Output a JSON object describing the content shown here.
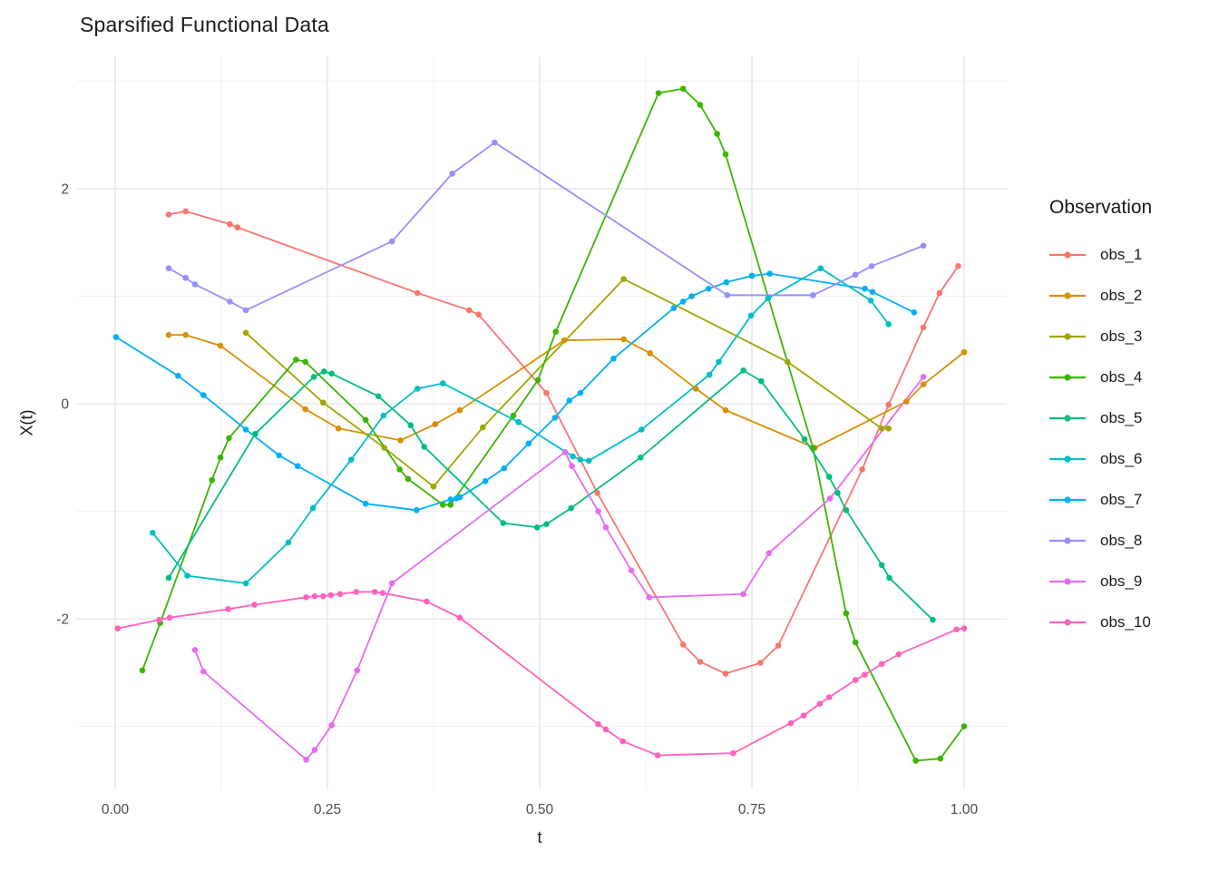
{
  "title": "Sparsified Functional Data",
  "chart_data": {
    "type": "line",
    "title": "Sparsified Functional Data",
    "xlabel": "t",
    "ylabel": "X(t)",
    "legend_title": "Observation",
    "legend_position": "right",
    "grid": true,
    "background": "#ffffff",
    "grid_major_color": "#ebebeb",
    "grid_minor_color": "#f1f1f1",
    "tick_label_color": "#4d4d4d",
    "xlim": [
      -0.045,
      1.05
    ],
    "ylim": [
      -3.6,
      3.25
    ],
    "x_ticks": {
      "values": [
        0,
        0.25,
        0.5,
        0.75,
        1.0
      ],
      "labels": [
        "0.00",
        "0.25",
        "0.50",
        "0.75",
        "1.00"
      ]
    },
    "x_minor": [
      0.125,
      0.375,
      0.625,
      0.875
    ],
    "y_ticks": {
      "values": [
        2,
        0,
        -2
      ],
      "labels": [
        "2",
        "0",
        "-2"
      ]
    },
    "y_minor": [
      3,
      1,
      -1,
      -3
    ],
    "series": [
      {
        "name": "obs_1",
        "color": "#F8766D",
        "points": [
          [
            0.063,
            1.76
          ],
          [
            0.083,
            1.79
          ],
          [
            0.135,
            1.67
          ],
          [
            0.144,
            1.64
          ],
          [
            0.356,
            1.03
          ],
          [
            0.417,
            0.87
          ],
          [
            0.428,
            0.83
          ],
          [
            0.508,
            0.1
          ],
          [
            0.568,
            -0.83
          ],
          [
            0.669,
            -2.24
          ],
          [
            0.689,
            -2.4
          ],
          [
            0.719,
            -2.51
          ],
          [
            0.76,
            -2.41
          ],
          [
            0.781,
            -2.25
          ],
          [
            0.88,
            -0.61
          ],
          [
            0.911,
            -0.01
          ],
          [
            0.952,
            0.71
          ],
          [
            0.971,
            1.03
          ],
          [
            0.993,
            1.28
          ]
        ]
      },
      {
        "name": "obs_2",
        "color": "#D89000",
        "points": [
          [
            0.063,
            0.64
          ],
          [
            0.083,
            0.64
          ],
          [
            0.124,
            0.54
          ],
          [
            0.224,
            -0.05
          ],
          [
            0.263,
            -0.23
          ],
          [
            0.336,
            -0.34
          ],
          [
            0.377,
            -0.19
          ],
          [
            0.406,
            -0.06
          ],
          [
            0.529,
            0.59
          ],
          [
            0.599,
            0.6
          ],
          [
            0.63,
            0.47
          ],
          [
            0.684,
            0.14
          ],
          [
            0.719,
            -0.06
          ],
          [
            0.824,
            -0.41
          ],
          [
            0.932,
            0.02
          ],
          [
            0.952,
            0.18
          ],
          [
            1.0,
            0.48
          ]
        ]
      },
      {
        "name": "obs_3",
        "color": "#A3A500",
        "points": [
          [
            0.154,
            0.66
          ],
          [
            0.245,
            0.01
          ],
          [
            0.317,
            -0.41
          ],
          [
            0.375,
            -0.77
          ],
          [
            0.433,
            -0.22
          ],
          [
            0.599,
            1.16
          ],
          [
            0.792,
            0.39
          ],
          [
            0.903,
            -0.23
          ],
          [
            0.911,
            -0.23
          ]
        ]
      },
      {
        "name": "obs_4",
        "color": "#39B600",
        "points": [
          [
            0.032,
            -2.48
          ],
          [
            0.053,
            -2.04
          ],
          [
            0.114,
            -0.71
          ],
          [
            0.124,
            -0.5
          ],
          [
            0.134,
            -0.32
          ],
          [
            0.213,
            0.41
          ],
          [
            0.224,
            0.39
          ],
          [
            0.295,
            -0.15
          ],
          [
            0.335,
            -0.61
          ],
          [
            0.345,
            -0.7
          ],
          [
            0.386,
            -0.94
          ],
          [
            0.395,
            -0.94
          ],
          [
            0.469,
            -0.11
          ],
          [
            0.498,
            0.22
          ],
          [
            0.519,
            0.67
          ],
          [
            0.64,
            2.89
          ],
          [
            0.669,
            2.93
          ],
          [
            0.689,
            2.78
          ],
          [
            0.709,
            2.51
          ],
          [
            0.719,
            2.32
          ],
          [
            0.822,
            -0.41
          ],
          [
            0.861,
            -1.95
          ],
          [
            0.872,
            -2.22
          ],
          [
            0.943,
            -3.32
          ],
          [
            0.972,
            -3.3
          ],
          [
            1.0,
            -3.0
          ]
        ]
      },
      {
        "name": "obs_5",
        "color": "#00BF7D",
        "points": [
          [
            0.063,
            -1.62
          ],
          [
            0.165,
            -0.28
          ],
          [
            0.234,
            0.25
          ],
          [
            0.246,
            0.3
          ],
          [
            0.255,
            0.28
          ],
          [
            0.31,
            0.07
          ],
          [
            0.348,
            -0.2
          ],
          [
            0.364,
            -0.4
          ],
          [
            0.457,
            -1.11
          ],
          [
            0.497,
            -1.15
          ],
          [
            0.508,
            -1.12
          ],
          [
            0.537,
            -0.97
          ],
          [
            0.619,
            -0.5
          ],
          [
            0.74,
            0.31
          ],
          [
            0.761,
            0.21
          ],
          [
            0.812,
            -0.33
          ],
          [
            0.841,
            -0.68
          ],
          [
            0.851,
            -0.83
          ],
          [
            0.861,
            -0.99
          ],
          [
            0.903,
            -1.5
          ],
          [
            0.912,
            -1.62
          ],
          [
            0.963,
            -2.01
          ]
        ]
      },
      {
        "name": "obs_6",
        "color": "#00BFC4",
        "points": [
          [
            0.044,
            -1.2
          ],
          [
            0.085,
            -1.6
          ],
          [
            0.154,
            -1.67
          ],
          [
            0.204,
            -1.29
          ],
          [
            0.233,
            -0.97
          ],
          [
            0.278,
            -0.52
          ],
          [
            0.316,
            -0.11
          ],
          [
            0.356,
            0.14
          ],
          [
            0.386,
            0.19
          ],
          [
            0.475,
            -0.17
          ],
          [
            0.539,
            -0.49
          ],
          [
            0.548,
            -0.52
          ],
          [
            0.558,
            -0.53
          ],
          [
            0.62,
            -0.24
          ],
          [
            0.7,
            0.27
          ],
          [
            0.711,
            0.39
          ],
          [
            0.749,
            0.82
          ],
          [
            0.769,
            0.98
          ],
          [
            0.831,
            1.26
          ],
          [
            0.89,
            0.96
          ],
          [
            0.911,
            0.74
          ]
        ]
      },
      {
        "name": "obs_7",
        "color": "#00B0F6",
        "points": [
          [
            0.001,
            0.62
          ],
          [
            0.074,
            0.26
          ],
          [
            0.104,
            0.08
          ],
          [
            0.154,
            -0.24
          ],
          [
            0.193,
            -0.48
          ],
          [
            0.215,
            -0.58
          ],
          [
            0.295,
            -0.93
          ],
          [
            0.355,
            -0.99
          ],
          [
            0.395,
            -0.89
          ],
          [
            0.402,
            -0.88
          ],
          [
            0.406,
            -0.87
          ],
          [
            0.436,
            -0.72
          ],
          [
            0.458,
            -0.6
          ],
          [
            0.487,
            -0.37
          ],
          [
            0.518,
            -0.13
          ],
          [
            0.535,
            0.03
          ],
          [
            0.548,
            0.1
          ],
          [
            0.587,
            0.42
          ],
          [
            0.658,
            0.89
          ],
          [
            0.669,
            0.95
          ],
          [
            0.679,
            1.0
          ],
          [
            0.699,
            1.07
          ],
          [
            0.72,
            1.13
          ],
          [
            0.75,
            1.19
          ],
          [
            0.771,
            1.21
          ],
          [
            0.883,
            1.07
          ],
          [
            0.892,
            1.04
          ],
          [
            0.941,
            0.85
          ]
        ]
      },
      {
        "name": "obs_8",
        "color": "#9590FF",
        "points": [
          [
            0.063,
            1.26
          ],
          [
            0.083,
            1.17
          ],
          [
            0.094,
            1.11
          ],
          [
            0.135,
            0.95
          ],
          [
            0.154,
            0.87
          ],
          [
            0.326,
            1.51
          ],
          [
            0.397,
            2.14
          ],
          [
            0.447,
            2.43
          ],
          [
            0.721,
            1.01
          ],
          [
            0.822,
            1.01
          ],
          [
            0.872,
            1.2
          ],
          [
            0.891,
            1.28
          ],
          [
            0.952,
            1.47
          ]
        ]
      },
      {
        "name": "obs_9",
        "color": "#E76BF3",
        "points": [
          [
            0.094,
            -2.29
          ],
          [
            0.104,
            -2.49
          ],
          [
            0.225,
            -3.31
          ],
          [
            0.235,
            -3.22
          ],
          [
            0.255,
            -2.99
          ],
          [
            0.285,
            -2.48
          ],
          [
            0.326,
            -1.67
          ],
          [
            0.53,
            -0.45
          ],
          [
            0.538,
            -0.58
          ],
          [
            0.569,
            -1.0
          ],
          [
            0.578,
            -1.15
          ],
          [
            0.608,
            -1.55
          ],
          [
            0.629,
            -1.8
          ],
          [
            0.74,
            -1.77
          ],
          [
            0.77,
            -1.39
          ],
          [
            0.842,
            -0.88
          ],
          [
            0.952,
            0.25
          ]
        ]
      },
      {
        "name": "obs_10",
        "color": "#FF62BC",
        "points": [
          [
            0.003,
            -2.09
          ],
          [
            0.052,
            -2.01
          ],
          [
            0.064,
            -1.99
          ],
          [
            0.133,
            -1.91
          ],
          [
            0.164,
            -1.87
          ],
          [
            0.225,
            -1.8
          ],
          [
            0.235,
            -1.79
          ],
          [
            0.245,
            -1.79
          ],
          [
            0.254,
            -1.78
          ],
          [
            0.265,
            -1.77
          ],
          [
            0.284,
            -1.75
          ],
          [
            0.306,
            -1.75
          ],
          [
            0.315,
            -1.76
          ],
          [
            0.367,
            -1.84
          ],
          [
            0.406,
            -1.99
          ],
          [
            0.569,
            -2.98
          ],
          [
            0.578,
            -3.03
          ],
          [
            0.598,
            -3.14
          ],
          [
            0.639,
            -3.27
          ],
          [
            0.728,
            -3.25
          ],
          [
            0.796,
            -2.97
          ],
          [
            0.811,
            -2.9
          ],
          [
            0.83,
            -2.79
          ],
          [
            0.841,
            -2.73
          ],
          [
            0.872,
            -2.57
          ],
          [
            0.883,
            -2.52
          ],
          [
            0.903,
            -2.42
          ],
          [
            0.923,
            -2.33
          ],
          [
            0.991,
            -2.1
          ],
          [
            1.0,
            -2.09
          ]
        ]
      }
    ]
  }
}
